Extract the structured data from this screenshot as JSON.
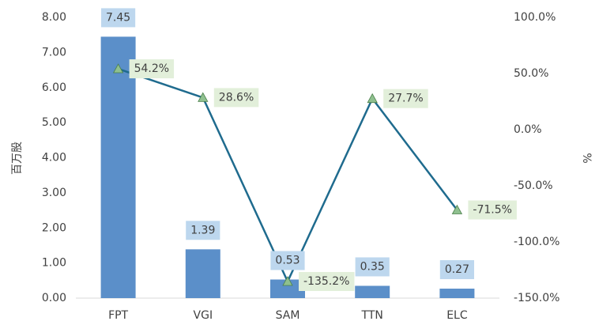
{
  "chart_data": {
    "type": "bar_line",
    "categories": [
      "FPT",
      "VGI",
      "SAM",
      "TTN",
      "ELC"
    ],
    "ylabel": "百万股",
    "y2label": "%",
    "series": [
      {
        "name": "bar",
        "type": "bar",
        "color": "#5b8fc9",
        "label_bg": "#bdd7ee",
        "values": [
          7.45,
          1.39,
          0.53,
          0.35,
          0.27
        ]
      },
      {
        "name": "line",
        "type": "line",
        "axis": "y2",
        "color": "#1f6b8e",
        "marker_color": "#8fc08f",
        "label_bg": "#e2efda",
        "values": [
          54.2,
          28.6,
          -135.2,
          27.7,
          -71.5
        ],
        "value_labels": [
          "54.2%",
          "28.6%",
          "-135.2%",
          "27.7%",
          "-71.5%"
        ]
      }
    ],
    "ylim": [
      0,
      8
    ],
    "yticks": [
      {
        "value": 0,
        "label": "0.00"
      },
      {
        "value": 1,
        "label": "1.00"
      },
      {
        "value": 2,
        "label": "2.00"
      },
      {
        "value": 3,
        "label": "3.00"
      },
      {
        "value": 4,
        "label": "4.00"
      },
      {
        "value": 5,
        "label": "5.00"
      },
      {
        "value": 6,
        "label": "6.00"
      },
      {
        "value": 7,
        "label": "7.00"
      },
      {
        "value": 8,
        "label": "8.00"
      }
    ],
    "y2lim": [
      -150,
      100
    ],
    "y2ticks": [
      {
        "value": -150,
        "label": "-150.0%"
      },
      {
        "value": -100,
        "label": "-100.0%"
      },
      {
        "value": -50,
        "label": "-50.0%"
      },
      {
        "value": 0,
        "label": "0.0%"
      },
      {
        "value": 50,
        "label": "50.0%"
      },
      {
        "value": 100,
        "label": "100.0%"
      }
    ],
    "grid": false
  }
}
